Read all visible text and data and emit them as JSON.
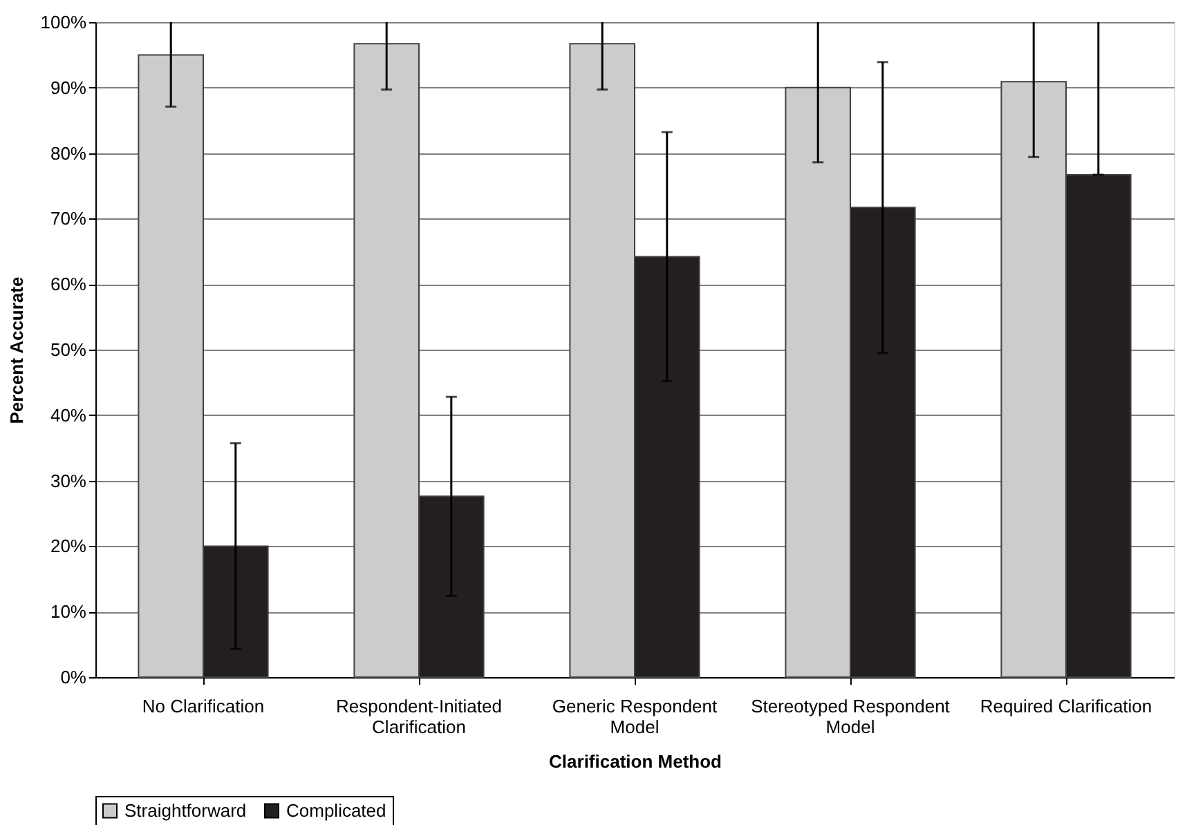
{
  "chart_data": {
    "type": "bar",
    "xlabel": "Clarification Method",
    "ylabel": "Percent Accurate",
    "categories": [
      "No Clarification",
      "Respondent-Initiated Clarification",
      "Generic Respondent Model",
      "Stereotyped Respondent Model",
      "Required Clarification"
    ],
    "series": [
      {
        "name": "Straightforward",
        "color": "#cccccc",
        "values": [
          95,
          96.7,
          96.7,
          90,
          90.9
        ],
        "errors": [
          [
            87.1,
            100
          ],
          [
            89.7,
            100
          ],
          [
            89.7,
            100
          ],
          [
            78.6,
            100
          ],
          [
            79.4,
            100
          ]
        ]
      },
      {
        "name": "Complicated",
        "color": "#231f20",
        "values": [
          20,
          27.6,
          64.2,
          71.7,
          76.7
        ],
        "errors": [
          [
            4.3,
            35.7
          ],
          [
            12.4,
            42.8
          ],
          [
            45.2,
            83.2
          ],
          [
            49.5,
            93.9
          ],
          [
            76.7,
            100
          ]
        ]
      }
    ],
    "ylim": [
      0,
      100
    ],
    "yticks": [
      {
        "value": 0,
        "label": "0%"
      },
      {
        "value": 10,
        "label": "10%"
      },
      {
        "value": 20,
        "label": "20%"
      },
      {
        "value": 30,
        "label": "30%"
      },
      {
        "value": 40,
        "label": "40%"
      },
      {
        "value": 50,
        "label": "50%"
      },
      {
        "value": 60,
        "label": "60%"
      },
      {
        "value": 70,
        "label": "70%"
      },
      {
        "value": 80,
        "label": "80%"
      },
      {
        "value": 90,
        "label": "90%"
      },
      {
        "value": 100,
        "label": "100%"
      }
    ],
    "grid": "y",
    "legend": "bottom"
  }
}
